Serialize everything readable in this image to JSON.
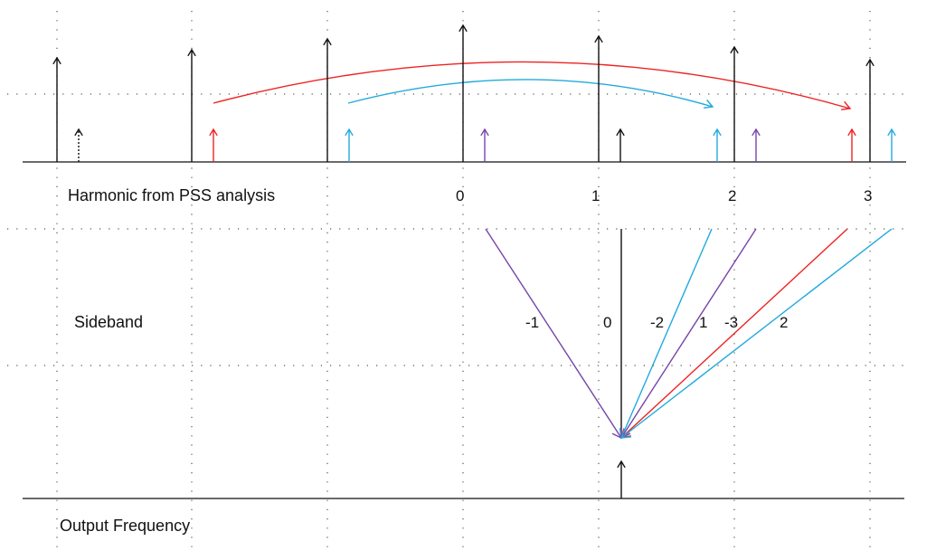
{
  "colors": {
    "black": "#111111",
    "red": "#ee2222",
    "cyan": "#22aadd",
    "purple": "#7744aa",
    "grid": "#555555"
  },
  "labels": {
    "harmonic_row": "Harmonic  from PSS analysis",
    "sideband_row": "Sideband",
    "output_row": "Output Frequency"
  },
  "harmonic_numbers": [
    "0",
    "1",
    "2",
    "3"
  ],
  "sideband_numbers": [
    "-1",
    "0",
    "-2",
    "1",
    "-3",
    "2"
  ],
  "harmonics": [
    {
      "id": "h-neg3",
      "color": "black",
      "level": "tall"
    },
    {
      "id": "h-neg2",
      "color": "black",
      "level": "tall"
    },
    {
      "id": "h-neg1",
      "color": "black",
      "level": "tall"
    },
    {
      "id": "h0",
      "color": "black",
      "level": "tall"
    },
    {
      "id": "h1",
      "color": "black",
      "level": "tall"
    },
    {
      "id": "h2",
      "color": "black",
      "level": "tall"
    },
    {
      "id": "h3",
      "color": "black",
      "level": "tall"
    }
  ],
  "sidebands": [
    {
      "id": "s-black-a",
      "color": "black"
    },
    {
      "id": "s-red-a",
      "color": "red"
    },
    {
      "id": "s-cyan-a",
      "color": "cyan"
    },
    {
      "id": "s-purple-a",
      "color": "purple"
    },
    {
      "id": "s-black-b",
      "color": "black"
    },
    {
      "id": "s-cyan-b",
      "color": "cyan"
    },
    {
      "id": "s-purple-b",
      "color": "purple"
    },
    {
      "id": "s-red-b",
      "color": "red"
    },
    {
      "id": "s-cyan-c",
      "color": "cyan"
    }
  ],
  "fold_lines": [
    {
      "id": "fold-purple-1",
      "color": "purple",
      "sideband": "-1"
    },
    {
      "id": "fold-black-0",
      "color": "black",
      "sideband": "0"
    },
    {
      "id": "fold-cyan-2",
      "color": "cyan",
      "sideband": "-2"
    },
    {
      "id": "fold-purple-2",
      "color": "purple",
      "sideband": "1"
    },
    {
      "id": "fold-red-3",
      "color": "red",
      "sideband": "-3"
    },
    {
      "id": "fold-cyan-3",
      "color": "cyan",
      "sideband": "2"
    }
  ],
  "curves": [
    {
      "id": "curve-red",
      "color": "red"
    },
    {
      "id": "curve-cyan",
      "color": "cyan"
    }
  ]
}
